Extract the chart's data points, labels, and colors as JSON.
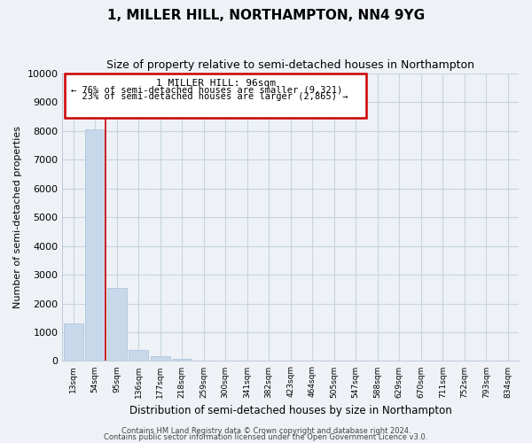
{
  "title": "1, MILLER HILL, NORTHAMPTON, NN4 9YG",
  "subtitle": "Size of property relative to semi-detached houses in Northampton",
  "xlabel": "Distribution of semi-detached houses by size in Northampton",
  "ylabel": "Number of semi-detached properties",
  "bar_labels": [
    "13sqm",
    "54sqm",
    "95sqm",
    "136sqm",
    "177sqm",
    "218sqm",
    "259sqm",
    "300sqm",
    "341sqm",
    "382sqm",
    "423sqm",
    "464sqm",
    "505sqm",
    "547sqm",
    "588sqm",
    "629sqm",
    "670sqm",
    "711sqm",
    "752sqm",
    "793sqm",
    "834sqm"
  ],
  "bar_values": [
    1300,
    8050,
    2530,
    390,
    160,
    80,
    0,
    0,
    0,
    0,
    0,
    0,
    0,
    0,
    0,
    0,
    0,
    0,
    0,
    0,
    0
  ],
  "bar_color": "#c8d8eb",
  "bar_edge_color": "#a8c0d8",
  "property_line_label": "1 MILLER HILL: 96sqm",
  "pct_smaller": 76,
  "n_smaller": 9321,
  "pct_larger": 23,
  "n_larger": 2865,
  "annotation_box_facecolor": "#ffffff",
  "annotation_box_edgecolor": "#cc0000",
  "vline_color": "#cc0000",
  "ylim": [
    0,
    10000
  ],
  "yticks": [
    0,
    1000,
    2000,
    3000,
    4000,
    5000,
    6000,
    7000,
    8000,
    9000,
    10000
  ],
  "grid_color": "#c8d4e0",
  "background_color": "#eef2f7",
  "title_fontsize": 11,
  "subtitle_fontsize": 9,
  "footer_line1": "Contains HM Land Registry data © Crown copyright and database right 2024.",
  "footer_line2": "Contains public sector information licensed under the Open Government Licence v3.0."
}
